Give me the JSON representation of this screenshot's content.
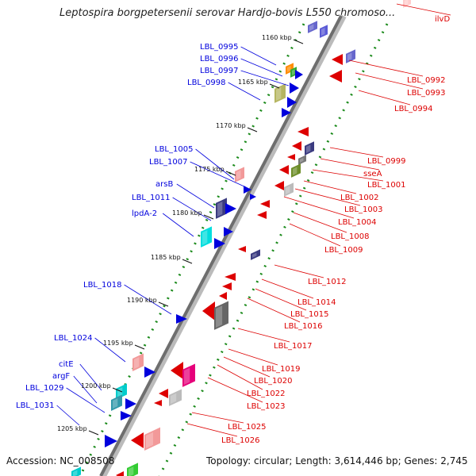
{
  "title": "Leptospira borgpetersenii serovar Hardjo-bovis L550 chromoso...",
  "footer": {
    "accession": "Accession: NC_008508",
    "topology": "Topology: circular; Length: 3,614,446 bp; Genes: 2,745"
  },
  "scale_labels": [
    "1160 kbp",
    "1165 kbp",
    "1170 kbp",
    "1175 kbp",
    "1180 kbp",
    "1185 kbp",
    "1190 kbp",
    "1195 kbp",
    "1200 kbp",
    "1205 kbp"
  ],
  "left_labels": [
    "LBL_0995",
    "LBL_0996",
    "LBL_0997",
    "LBL_0998",
    "LBL_1005",
    "LBL_1007",
    "arsB",
    "LBL_1011",
    "lpdA-2",
    "LBL_1018",
    "LBL_1024",
    "citE",
    "argF",
    "LBL_1029",
    "LBL_1031"
  ],
  "right_labels": [
    "ilvD",
    "LBL_0992",
    "LBL_0993",
    "LBL_0994",
    "LBL_0999",
    "sseA",
    "LBL_1001",
    "LBL_1002",
    "LBL_1003",
    "LBL_1004",
    "LBL_1008",
    "LBL_1009",
    "LBL_1012",
    "LBL_1014",
    "LBL_1015",
    "LBL_1016",
    "LBL_1017",
    "LBL_1019",
    "LBL_1020",
    "LBL_1022",
    "LBL_1023",
    "LBL_1025",
    "LBL_1026"
  ],
  "colors": {
    "left_strand": "#0000dd",
    "right_strand": "#dd0000",
    "backbone": "#7d7d7d",
    "tick": "#1a8a1a"
  }
}
